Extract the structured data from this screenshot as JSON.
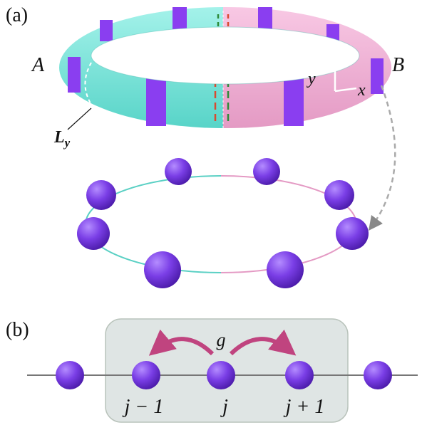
{
  "panel_a": {
    "label": "(a)",
    "left_label": "A",
    "right_label": "B",
    "axis_y": "y",
    "axis_x": "x",
    "l_y": {
      "main": "L",
      "sub": "y"
    }
  },
  "panel_b": {
    "label": "(b)",
    "coupling": "g",
    "sites": [
      "j − 1",
      "j",
      "j + 1"
    ]
  }
}
